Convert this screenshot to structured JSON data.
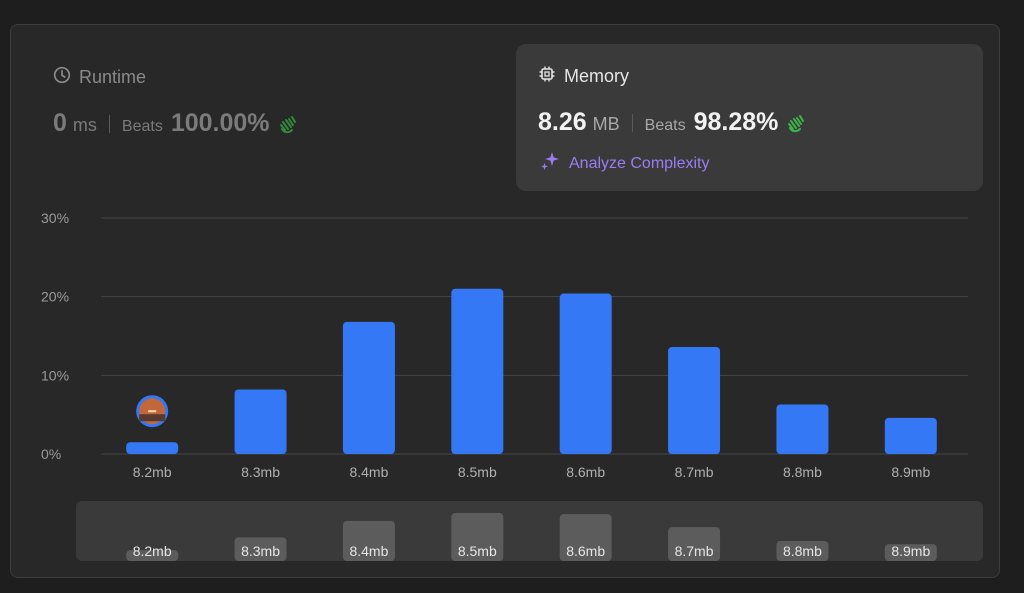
{
  "runtime": {
    "title": "Runtime",
    "value": "0",
    "unit": "ms",
    "beats_label": "Beats",
    "beats_value": "100.00%",
    "icon": "clock-icon"
  },
  "memory": {
    "title": "Memory",
    "value": "8.26",
    "unit": "MB",
    "beats_label": "Beats",
    "beats_value": "98.28%",
    "icon": "chip-icon",
    "analyze_label": "Analyze Complexity"
  },
  "colors": {
    "bar": "#3478f6",
    "clap": "#3bb54a",
    "accent": "#9b7cf4",
    "mini_bar": "#5c5c5c"
  },
  "chart_data": {
    "type": "bar",
    "categories": [
      "8.2mb",
      "8.3mb",
      "8.4mb",
      "8.5mb",
      "8.6mb",
      "8.7mb",
      "8.8mb",
      "8.9mb"
    ],
    "values": [
      1.5,
      8.2,
      16.8,
      21.0,
      20.4,
      13.6,
      6.3,
      4.6
    ],
    "yticks": [
      "0%",
      "10%",
      "20%",
      "30%"
    ],
    "ylim": [
      0,
      30
    ],
    "grid": true,
    "marker_category": "8.2mb"
  }
}
